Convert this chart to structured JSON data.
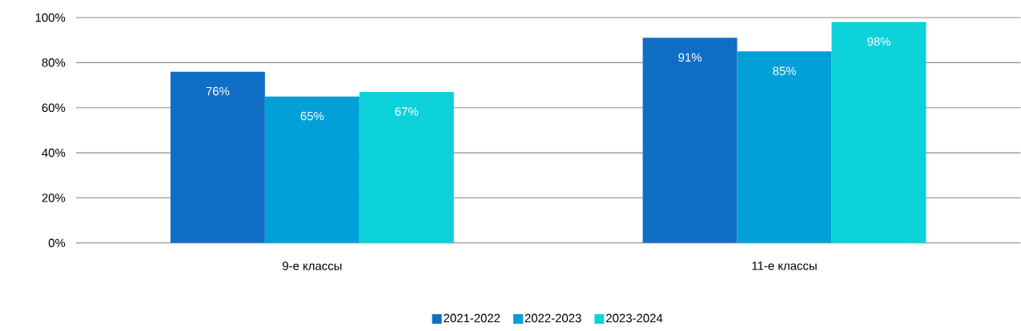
{
  "chart_data": {
    "type": "bar",
    "categories": [
      "9-е классы",
      "11-е классы"
    ],
    "series": [
      {
        "name": "2021-2022",
        "color": "#106ec6",
        "values": [
          76,
          91
        ],
        "value_labels": [
          "76%",
          "91%"
        ]
      },
      {
        "name": "2022-2023",
        "color": "#039fd8",
        "values": [
          65,
          85
        ],
        "value_labels": [
          "65%",
          "85%"
        ]
      },
      {
        "name": "2023-2024",
        "color": "#0dd1d9",
        "values": [
          67,
          98
        ],
        "value_labels": [
          "67%",
          "98%"
        ]
      }
    ],
    "ylim": [
      0,
      100
    ],
    "yticks": [
      {
        "value": 0,
        "label": "0%"
      },
      {
        "value": 20,
        "label": "20%"
      },
      {
        "value": 40,
        "label": "40%"
      },
      {
        "value": 60,
        "label": "60%"
      },
      {
        "value": 80,
        "label": "80%"
      },
      {
        "value": 100,
        "label": "100%"
      }
    ],
    "grid": "y",
    "legend": "bottom"
  }
}
